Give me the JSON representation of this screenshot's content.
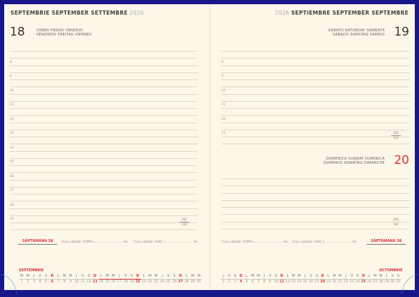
{
  "left": {
    "month": "SEPTEMBRIE SEPTEMBER SETTEMBRE",
    "year": "2026",
    "day": "18",
    "day_names_1": "VINERI FRIDAY VENERDÌ",
    "day_names_2": "VENDREDI FREITAG VIERNES",
    "hours": [
      "8",
      "9",
      "10",
      "11",
      "12",
      "13",
      "14",
      "15",
      "16",
      "17",
      "18",
      "19"
    ],
    "page_count": {
      "top": "261",
      "bottom": "104"
    },
    "week": "SĂPTĂMÂNA 38",
    "curs_euro": "Curs valutar: EURO = ......................... lei;",
    "curs_usd": "Curs valutar: USD = ......................... lei;",
    "calendar": {
      "month": "SEPTEMBRIE",
      "letters": [
        "M",
        "M",
        "J",
        "V",
        "S",
        "D",
        "L",
        "M",
        "M",
        "J",
        "V",
        "S",
        "D",
        "L",
        "M",
        "M",
        "J",
        "V",
        "S",
        "D",
        "L",
        "M",
        "M",
        "J",
        "V",
        "S",
        "D",
        "L",
        "M",
        "M"
      ],
      "sundays": [
        6,
        13,
        20,
        27
      ],
      "highlight_week": [
        14,
        20
      ]
    }
  },
  "right": {
    "month": "SEPTIEMBRE SEPTEMBER SEPTEMBRE",
    "year": "2026",
    "day": "19",
    "day_names_1": "SABATO SATURDAY SÂMBĂTĂ",
    "day_names_2": "SÁBADO SAMSTAG SAMEDI",
    "hours": [
      "8",
      "9",
      "10",
      "11",
      "12",
      "13"
    ],
    "page_count": {
      "top": "262",
      "bottom": "103"
    },
    "sunday": {
      "day": "20",
      "day_names_1": "DOMENICA SUNDAY DUMINICĂ",
      "day_names_2": "DOMINGO SONNTAG DIMANCHE",
      "page_count": {
        "top": "263",
        "bottom": "102"
      }
    },
    "week": "SĂPTĂMÂNA 38",
    "curs_euro": "Curs valutar: EURO = ......................... lei;",
    "curs_usd": "Curs valutar: USD = ......................... lei;",
    "calendar": {
      "month": "OCTOMBRIE",
      "letters": [
        "J",
        "V",
        "S",
        "D",
        "L",
        "M",
        "M",
        "J",
        "V",
        "S",
        "D",
        "L",
        "M",
        "M",
        "J",
        "V",
        "S",
        "D",
        "L",
        "M",
        "M",
        "J",
        "V",
        "S",
        "D",
        "L",
        "M",
        "M",
        "J",
        "V",
        "S"
      ],
      "sundays": [
        4,
        11,
        18,
        25
      ]
    }
  },
  "colors": {
    "frame": "#17178a",
    "paper": "#fcf7e8",
    "accent": "#d33333"
  }
}
